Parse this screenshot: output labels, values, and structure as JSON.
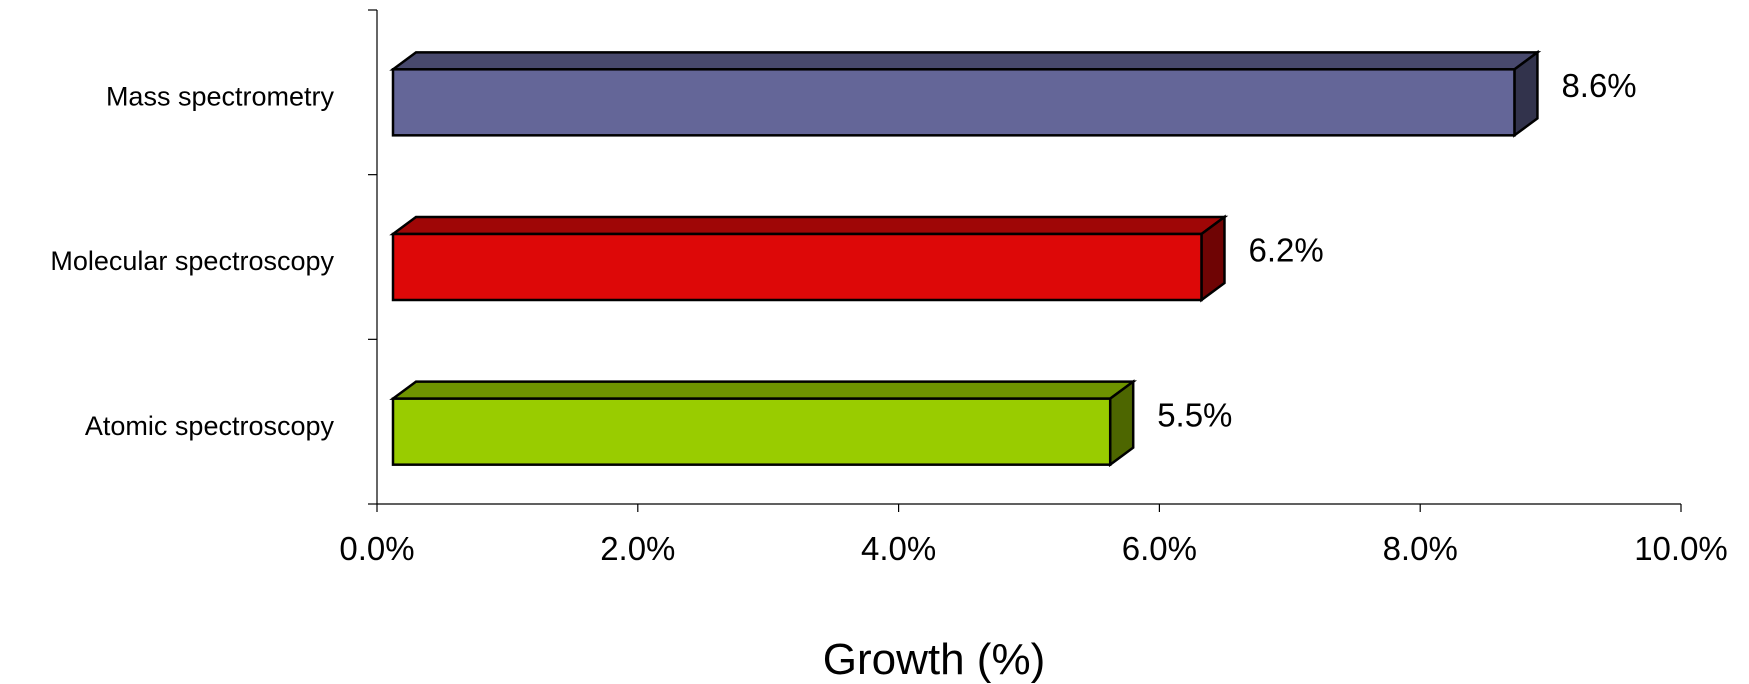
{
  "chart_data": {
    "type": "bar",
    "orientation": "horizontal",
    "style": "3d",
    "categories": [
      "Mass spectrometry",
      "Molecular spectroscopy",
      "Atomic spectroscopy"
    ],
    "values": [
      8.6,
      6.2,
      5.5
    ],
    "data_labels": [
      "8.6%",
      "6.2%",
      "5.5%"
    ],
    "colors": [
      "#646698",
      "#dd0808",
      "#99cc00"
    ],
    "xlabel": "Growth (%)",
    "ylabel": "",
    "xlim": [
      0,
      10
    ],
    "x_ticks": [
      0,
      2,
      4,
      6,
      8,
      10
    ],
    "x_tick_labels": [
      "0.0%",
      "2.0%",
      "4.0%",
      "6.0%",
      "8.0%",
      "10.0%"
    ],
    "grid": false,
    "legend": "none"
  }
}
